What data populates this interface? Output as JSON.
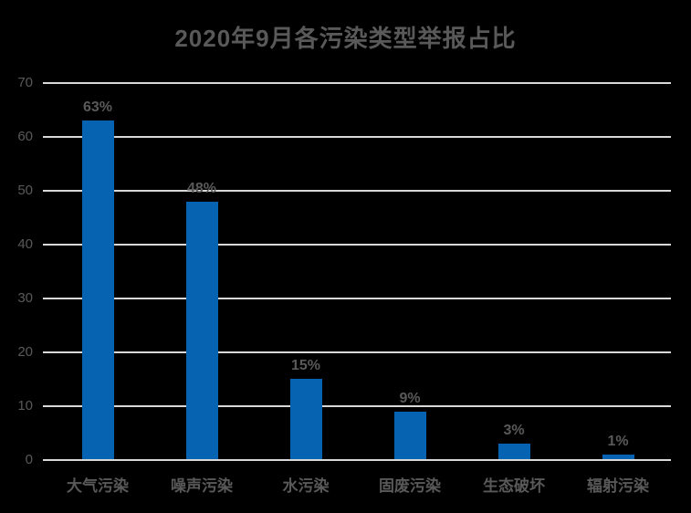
{
  "chart_data": {
    "type": "bar",
    "title": "2020年9月各污染类型举报占比",
    "categories": [
      "大气污染",
      "噪声污染",
      "水污染",
      "固废污染",
      "生态破坏",
      "辐射污染"
    ],
    "values": [
      63,
      48,
      15,
      9,
      3,
      1
    ],
    "data_labels": [
      "63%",
      "48%",
      "15%",
      "9%",
      "3%",
      "1%"
    ],
    "xlabel": "",
    "ylabel": "",
    "ylim": [
      0,
      70
    ],
    "yticks": [
      0,
      10,
      20,
      30,
      40,
      50,
      60,
      70
    ],
    "grid": "horizontal",
    "legend_position": "none",
    "colors": {
      "background": "#000000",
      "bar": "#0663B1",
      "title": "#595959",
      "tick_label": "#595959",
      "data_label": "#595959",
      "category_label": "#595959",
      "gridline": "#D9D9D9"
    }
  }
}
